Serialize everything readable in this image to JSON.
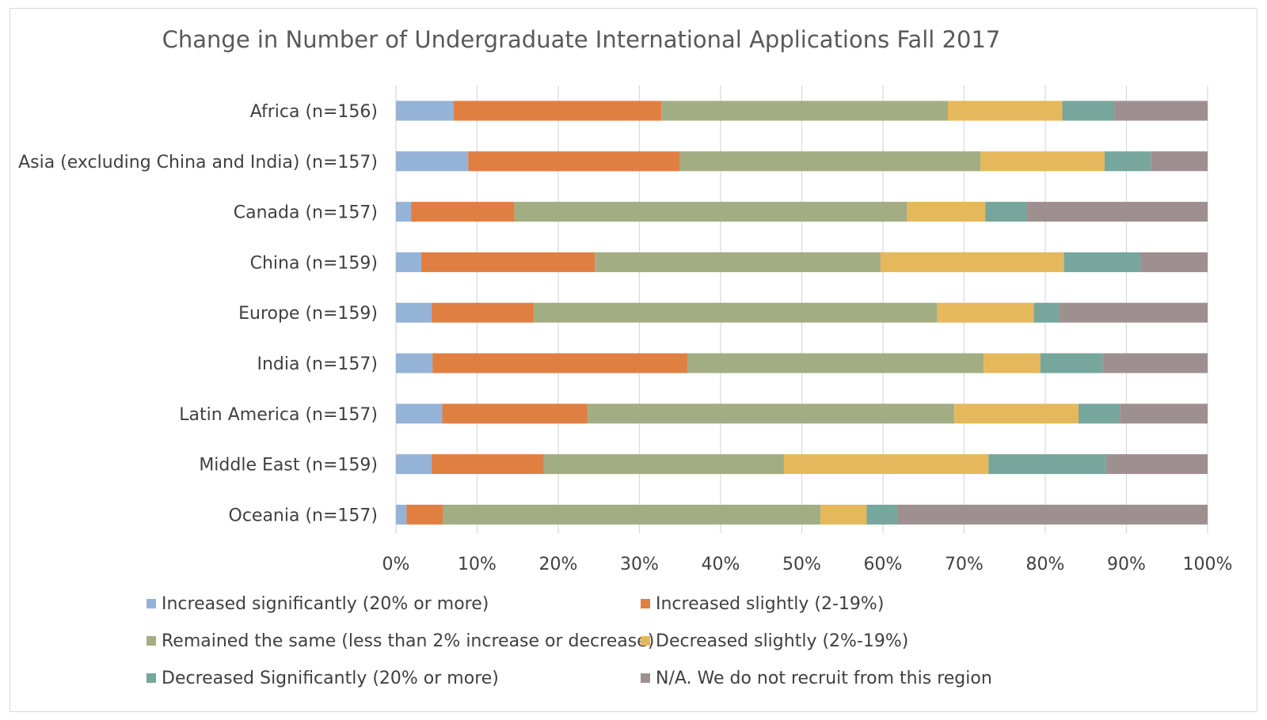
{
  "chart_data": {
    "type": "bar",
    "orientation": "horizontal",
    "stacked": "percent",
    "title": "Change in Number of Undergraduate International Applications Fall 2017",
    "xlabel": "",
    "ylabel": "",
    "xlim": [
      0,
      100
    ],
    "x_ticks": [
      "0%",
      "10%",
      "20%",
      "30%",
      "40%",
      "50%",
      "60%",
      "70%",
      "80%",
      "90%",
      "100%"
    ],
    "grid": "vertical",
    "legend_position": "bottom",
    "categories": [
      "Africa (n=156)",
      "Asia (excluding China and India) (n=157)",
      "Canada (n=157)",
      "China (n=159)",
      "Europe (n=159)",
      "India (n=157)",
      "Latin America (n=157)",
      "Middle East (n=159)",
      "Oceania (n=157)"
    ],
    "series": [
      {
        "name": "Increased significantly (20% or more)",
        "color": "#95b3d7",
        "values": [
          7.1,
          8.9,
          1.9,
          3.1,
          4.4,
          4.5,
          5.7,
          4.4,
          1.3
        ]
      },
      {
        "name": "Increased slightly (2-19%)",
        "color": "#e07f42",
        "values": [
          25.6,
          26.1,
          12.7,
          21.4,
          12.6,
          31.4,
          17.9,
          13.8,
          4.5
        ]
      },
      {
        "name": "Remained the same (less than 2% increase or decrease)",
        "color": "#a3ad83",
        "values": [
          35.3,
          37.0,
          48.4,
          35.2,
          49.7,
          36.5,
          45.2,
          29.6,
          46.5
        ]
      },
      {
        "name": "Decreased slightly (2%-19%)",
        "color": "#e6b85c",
        "values": [
          14.1,
          15.3,
          9.6,
          22.6,
          11.9,
          7.0,
          15.3,
          25.2,
          5.7
        ]
      },
      {
        "name": "Decreased Significantly (20% or more)",
        "color": "#76a69c",
        "values": [
          6.4,
          5.7,
          5.1,
          9.4,
          3.1,
          7.7,
          5.1,
          14.5,
          3.8
        ]
      },
      {
        "name": "N/A. We do not recruit from this region",
        "color": "#9e9090",
        "values": [
          11.5,
          7.0,
          22.3,
          8.3,
          18.3,
          12.9,
          10.8,
          12.5,
          38.2
        ]
      }
    ]
  }
}
